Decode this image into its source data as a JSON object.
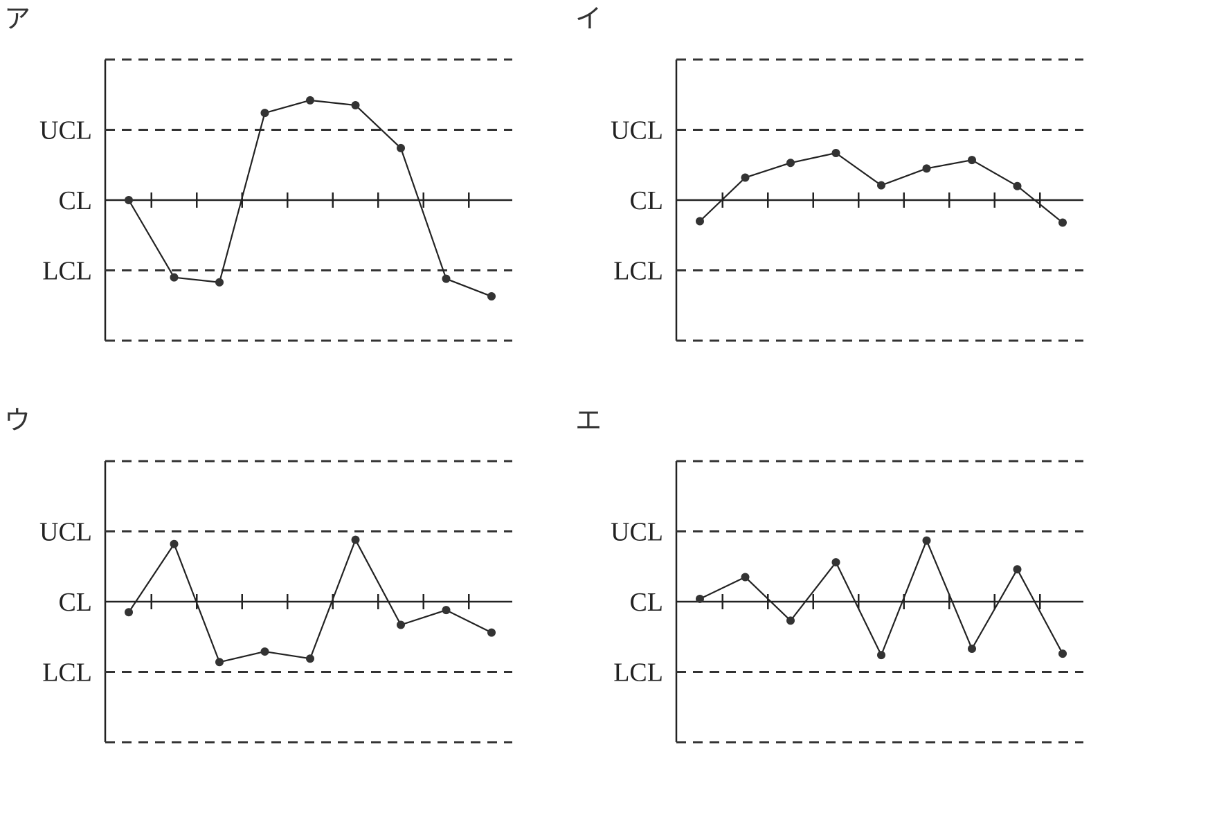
{
  "chart_data": [
    {
      "type": "line",
      "panel_label": "ア",
      "y_labels": [
        "UCL",
        "CL",
        "LCL"
      ],
      "ylim": [
        -2,
        2
      ],
      "x": [
        1,
        2,
        3,
        4,
        5,
        6,
        7,
        8,
        9
      ],
      "values": [
        0.0,
        -1.1,
        -1.17,
        1.24,
        1.42,
        1.35,
        0.74,
        -1.12,
        -1.37
      ],
      "grid": false
    },
    {
      "type": "line",
      "panel_label": "イ",
      "y_labels": [
        "UCL",
        "CL",
        "LCL"
      ],
      "ylim": [
        -2,
        2
      ],
      "x": [
        1,
        2,
        3,
        4,
        5,
        6,
        7,
        8,
        9
      ],
      "values": [
        -0.3,
        0.32,
        0.53,
        0.67,
        0.21,
        0.45,
        0.57,
        0.2,
        -0.32
      ],
      "grid": false
    },
    {
      "type": "line",
      "panel_label": "ウ",
      "y_labels": [
        "UCL",
        "CL",
        "LCL"
      ],
      "ylim": [
        -2,
        2
      ],
      "x": [
        1,
        2,
        3,
        4,
        5,
        6,
        7,
        8,
        9
      ],
      "values": [
        -0.15,
        0.82,
        -0.86,
        -0.71,
        -0.81,
        0.88,
        -0.33,
        -0.12,
        -0.44
      ],
      "grid": false
    },
    {
      "type": "line",
      "panel_label": "エ",
      "y_labels": [
        "UCL",
        "CL",
        "LCL"
      ],
      "ylim": [
        -2,
        2
      ],
      "x": [
        1,
        2,
        3,
        4,
        5,
        6,
        7,
        8,
        9
      ],
      "values": [
        0.04,
        0.35,
        -0.27,
        0.56,
        -0.76,
        0.87,
        -0.67,
        0.46,
        -0.74
      ],
      "grid": false
    }
  ]
}
